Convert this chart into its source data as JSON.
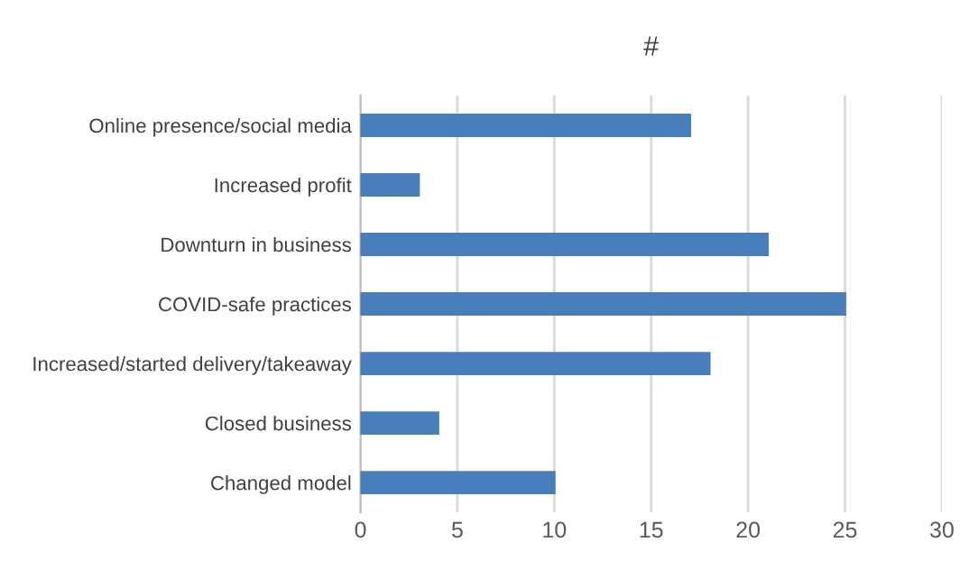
{
  "chart_data": {
    "type": "bar",
    "orientation": "horizontal",
    "title": "#",
    "categories": [
      "Online presence/social media",
      "Increased profit",
      "Downturn in business",
      "COVID-safe practices",
      "Increased/started delivery/takeaway",
      "Closed business",
      "Changed model"
    ],
    "values": [
      17,
      3,
      21,
      25,
      18,
      4,
      10
    ],
    "color": "#4a7ebb",
    "xlim": [
      0,
      30
    ],
    "xticks": [
      0,
      5,
      10,
      15,
      20,
      25,
      30
    ],
    "grid": "x",
    "legend": false
  }
}
